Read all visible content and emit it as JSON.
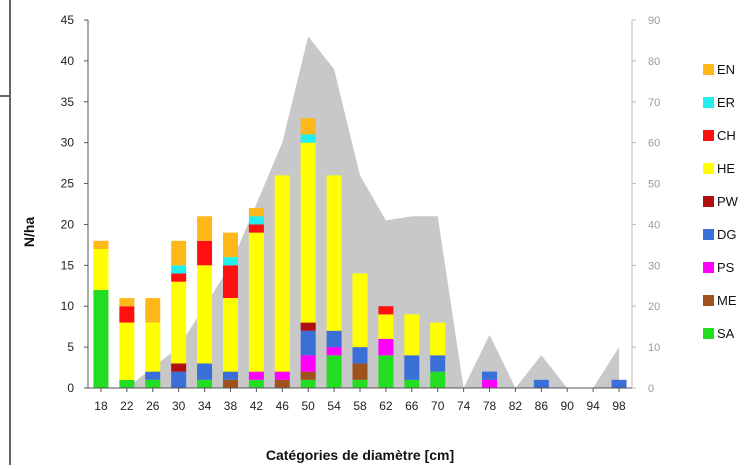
{
  "chart_data": {
    "type": "bar",
    "stacked": true,
    "xlabel": "Catégories de diamètre [cm]",
    "ylabel": "N/ha",
    "categories": [
      "18",
      "22",
      "26",
      "30",
      "34",
      "38",
      "42",
      "46",
      "50",
      "54",
      "58",
      "62",
      "66",
      "70",
      "74",
      "78",
      "82",
      "86",
      "90",
      "94",
      "98"
    ],
    "ylim": [
      0,
      45
    ],
    "yticks": [
      0,
      5,
      10,
      15,
      20,
      25,
      30,
      35,
      40,
      45
    ],
    "y2lim": [
      0,
      90
    ],
    "y2ticks": [
      0,
      10,
      20,
      30,
      40,
      50,
      60,
      70,
      80,
      90
    ],
    "grid": false,
    "legend_position": "right",
    "series": [
      {
        "name": "SA",
        "color": "#22dd22",
        "values": [
          12,
          1,
          1,
          0,
          1,
          0,
          1,
          0,
          1,
          4,
          1,
          4,
          1,
          2,
          0,
          0,
          0,
          0,
          0,
          0,
          0
        ]
      },
      {
        "name": "ME",
        "color": "#a0521e",
        "values": [
          0,
          0,
          0,
          0,
          0,
          1,
          0,
          1,
          1,
          0,
          2,
          0,
          0,
          0,
          0,
          0,
          0,
          0,
          0,
          0,
          0
        ]
      },
      {
        "name": "PS",
        "color": "#ff00ff",
        "values": [
          0,
          0,
          0,
          0,
          0,
          0,
          1,
          1,
          2,
          1,
          0,
          2,
          0,
          0,
          0,
          1,
          0,
          0,
          0,
          0,
          0
        ]
      },
      {
        "name": "DG",
        "color": "#3a6fd8",
        "values": [
          0,
          0,
          1,
          2,
          2,
          1,
          0,
          0,
          3,
          2,
          2,
          0,
          3,
          2,
          0,
          1,
          0,
          1,
          0,
          0,
          1
        ]
      },
      {
        "name": "PW",
        "color": "#b01010",
        "values": [
          0,
          0,
          0,
          1,
          0,
          0,
          0,
          0,
          1,
          0,
          0,
          0,
          0,
          0,
          0,
          0,
          0,
          0,
          0,
          0,
          0
        ]
      },
      {
        "name": "HE",
        "color": "#ffff00",
        "values": [
          5,
          7,
          6,
          10,
          12,
          9,
          17,
          24,
          22,
          19,
          9,
          3,
          5,
          4,
          0,
          0,
          0,
          0,
          0,
          0,
          0
        ]
      },
      {
        "name": "CH",
        "color": "#ff1010",
        "values": [
          0,
          2,
          0,
          1,
          3,
          4,
          1,
          0,
          0,
          0,
          0,
          1,
          0,
          0,
          0,
          0,
          0,
          0,
          0,
          0,
          0
        ]
      },
      {
        "name": "ER",
        "color": "#22eeee",
        "values": [
          0,
          0,
          0,
          1,
          0,
          1,
          1,
          0,
          1,
          0,
          0,
          0,
          0,
          0,
          0,
          0,
          0,
          0,
          0,
          0,
          0
        ]
      },
      {
        "name": "EN",
        "color": "#ffb81a",
        "values": [
          1,
          1,
          3,
          3,
          3,
          3,
          1,
          0,
          2,
          0,
          0,
          0,
          0,
          0,
          0,
          0,
          0,
          0,
          0,
          0,
          0
        ]
      }
    ],
    "area_series": {
      "axis": "right",
      "color": "#c8c8c8",
      "values": [
        0,
        0,
        5,
        10,
        20,
        30,
        45,
        60,
        86,
        78,
        52,
        41,
        42,
        42,
        0,
        13,
        0,
        8,
        0,
        0,
        10
      ]
    }
  }
}
